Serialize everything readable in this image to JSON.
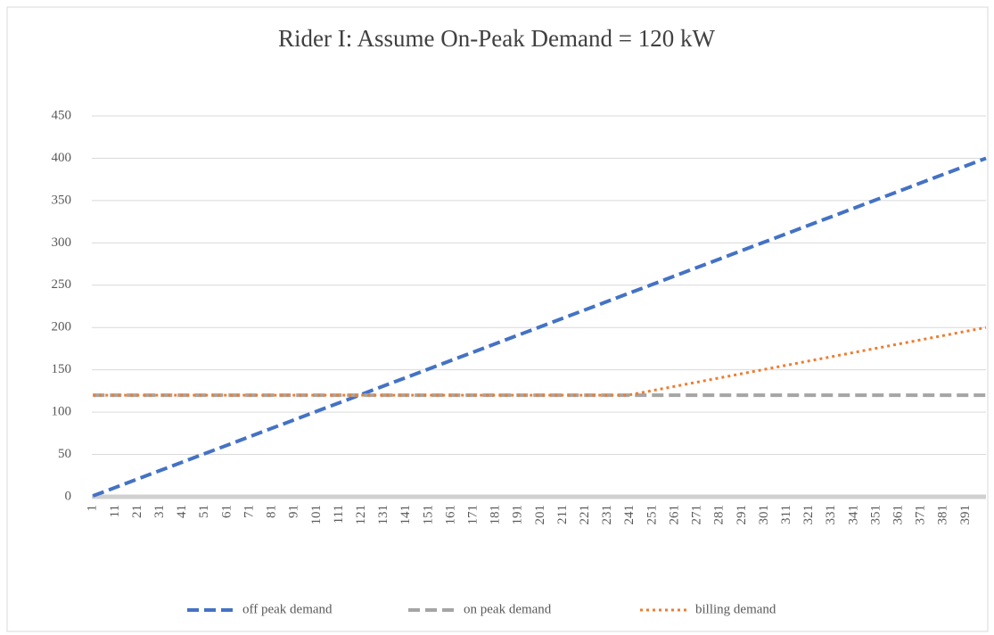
{
  "chart_data": {
    "type": "line",
    "title": "Rider I: Assume On-Peak Demand = 120 kW",
    "x": [
      1,
      240,
      400
    ],
    "series": [
      {
        "name": "off peak demand",
        "color": "#4472c4",
        "dash": "dashed",
        "values": [
          1,
          240,
          400
        ]
      },
      {
        "name": "on peak demand",
        "color": "#a5a5a5",
        "dash": "dashed",
        "values": [
          120,
          120,
          120
        ]
      },
      {
        "name": "billing demand",
        "color": "#ed7d31",
        "dash": "dotted",
        "values": [
          120,
          120,
          200
        ]
      }
    ],
    "xlim": [
      0.5,
      400
    ],
    "xticks": [
      1,
      11,
      21,
      31,
      41,
      51,
      61,
      71,
      81,
      91,
      101,
      111,
      121,
      131,
      141,
      151,
      161,
      171,
      181,
      191,
      201,
      211,
      221,
      231,
      241,
      251,
      261,
      271,
      281,
      291,
      301,
      311,
      321,
      331,
      341,
      351,
      361,
      371,
      381,
      391
    ],
    "ylim": [
      0,
      450
    ],
    "yticks": [
      0,
      50,
      100,
      150,
      200,
      250,
      300,
      350,
      400,
      450
    ],
    "grid": true,
    "legend": "bottom"
  }
}
